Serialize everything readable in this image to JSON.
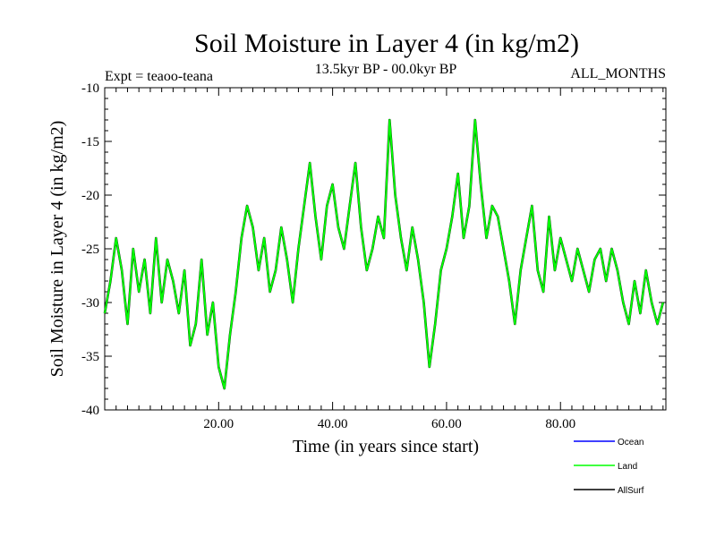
{
  "chart_data": {
    "type": "line",
    "title": "Soil Moisture in Layer 4 (in kg/m2)",
    "subtitle_left": "Expt = teaoo-teana",
    "subtitle_center": "13.5kyr BP - 00.0kyr BP",
    "subtitle_right": "ALL_MONTHS",
    "xlabel": "Time (in years since start)",
    "ylabel": "Soil Moisture in Layer 4 (in kg/m2)",
    "xlim": [
      0,
      98.5
    ],
    "ylim": [
      -40,
      -10
    ],
    "x_ticks": [
      20,
      40,
      60,
      80
    ],
    "x_tick_labels": [
      "20.00",
      "40.00",
      "60.00",
      "80.00"
    ],
    "y_ticks": [
      -40,
      -35,
      -30,
      -25,
      -20,
      -15,
      -10
    ],
    "y_tick_labels": [
      "-40",
      "-35",
      "-30",
      "-25",
      "-20",
      "-15",
      "-10"
    ],
    "series": [
      {
        "name": "Ocean",
        "color": "#0000ff",
        "x": [],
        "values": []
      },
      {
        "name": "Land",
        "color": "#00ff00",
        "x": [
          0,
          1,
          2,
          3,
          4,
          5,
          6,
          7,
          8,
          9,
          10,
          11,
          12,
          13,
          14,
          15,
          16,
          17,
          18,
          19,
          20,
          21,
          22,
          23,
          24,
          25,
          26,
          27,
          28,
          29,
          30,
          31,
          32,
          33,
          34,
          35,
          36,
          37,
          38,
          39,
          40,
          41,
          42,
          43,
          44,
          45,
          46,
          47,
          48,
          49,
          50,
          51,
          52,
          53,
          54,
          55,
          56,
          57,
          58,
          59,
          60,
          61,
          62,
          63,
          64,
          65,
          66,
          67,
          68,
          69,
          70,
          71,
          72,
          73,
          74,
          75,
          76,
          77,
          78,
          79,
          80,
          81,
          82,
          83,
          84,
          85,
          86,
          87,
          88,
          89,
          90,
          91,
          92,
          93,
          94,
          95,
          96,
          97,
          98
        ],
        "values": [
          -31,
          -28,
          -24,
          -27,
          -32,
          -25,
          -29,
          -26,
          -31,
          -24,
          -30,
          -26,
          -28,
          -31,
          -27,
          -34,
          -32,
          -26,
          -33,
          -30,
          -36,
          -38,
          -33,
          -29,
          -24,
          -21,
          -23,
          -27,
          -24,
          -29,
          -27,
          -23,
          -26,
          -30,
          -25,
          -21,
          -17,
          -22,
          -26,
          -21,
          -19,
          -23,
          -25,
          -21,
          -17,
          -23,
          -27,
          -25,
          -22,
          -24,
          -13,
          -20,
          -24,
          -27,
          -23,
          -26,
          -30,
          -36,
          -32,
          -27,
          -25,
          -22,
          -18,
          -24,
          -21,
          -13,
          -19,
          -24,
          -21,
          -22,
          -25,
          -28,
          -32,
          -27,
          -24,
          -21,
          -27,
          -29,
          -22,
          -27,
          -24,
          -26,
          -28,
          -25,
          -27,
          -29,
          -26,
          -25,
          -28,
          -25,
          -27,
          -30,
          -32,
          -28,
          -31,
          -27,
          -30,
          -32,
          -30
        ]
      },
      {
        "name": "AllSurf",
        "color": "#000000",
        "x": [
          0,
          1,
          2,
          3,
          4,
          5,
          6,
          7,
          8,
          9,
          10,
          11,
          12,
          13,
          14,
          15,
          16,
          17,
          18,
          19,
          20,
          21,
          22,
          23,
          24,
          25,
          26,
          27,
          28,
          29,
          30,
          31,
          32,
          33,
          34,
          35,
          36,
          37,
          38,
          39,
          40,
          41,
          42,
          43,
          44,
          45,
          46,
          47,
          48,
          49,
          50,
          51,
          52,
          53,
          54,
          55,
          56,
          57,
          58,
          59,
          60,
          61,
          62,
          63,
          64,
          65,
          66,
          67,
          68,
          69,
          70,
          71,
          72,
          73,
          74,
          75,
          76,
          77,
          78,
          79,
          80,
          81,
          82,
          83,
          84,
          85,
          86,
          87,
          88,
          89,
          90,
          91,
          92,
          93,
          94,
          95,
          96,
          97,
          98
        ],
        "values": [
          -31,
          -28,
          -24,
          -27,
          -32,
          -25,
          -29,
          -26,
          -31,
          -24,
          -30,
          -26,
          -28,
          -31,
          -27,
          -34,
          -32,
          -26,
          -33,
          -30,
          -36,
          -38,
          -33,
          -29,
          -24,
          -21,
          -23,
          -27,
          -24,
          -29,
          -27,
          -23,
          -26,
          -30,
          -25,
          -21,
          -17,
          -22,
          -26,
          -21,
          -19,
          -23,
          -25,
          -21,
          -17,
          -23,
          -27,
          -25,
          -22,
          -24,
          -13,
          -20,
          -24,
          -27,
          -23,
          -26,
          -30,
          -36,
          -32,
          -27,
          -25,
          -22,
          -18,
          -24,
          -21,
          -13,
          -19,
          -24,
          -21,
          -22,
          -25,
          -28,
          -32,
          -27,
          -24,
          -21,
          -27,
          -29,
          -22,
          -27,
          -24,
          -26,
          -28,
          -25,
          -27,
          -29,
          -26,
          -25,
          -28,
          -25,
          -27,
          -30,
          -32,
          -28,
          -31,
          -27,
          -30,
          -32,
          -30
        ]
      }
    ],
    "legend": {
      "placement": "bottom-right",
      "entries": [
        "Ocean",
        "Land",
        "AllSurf"
      ]
    }
  }
}
